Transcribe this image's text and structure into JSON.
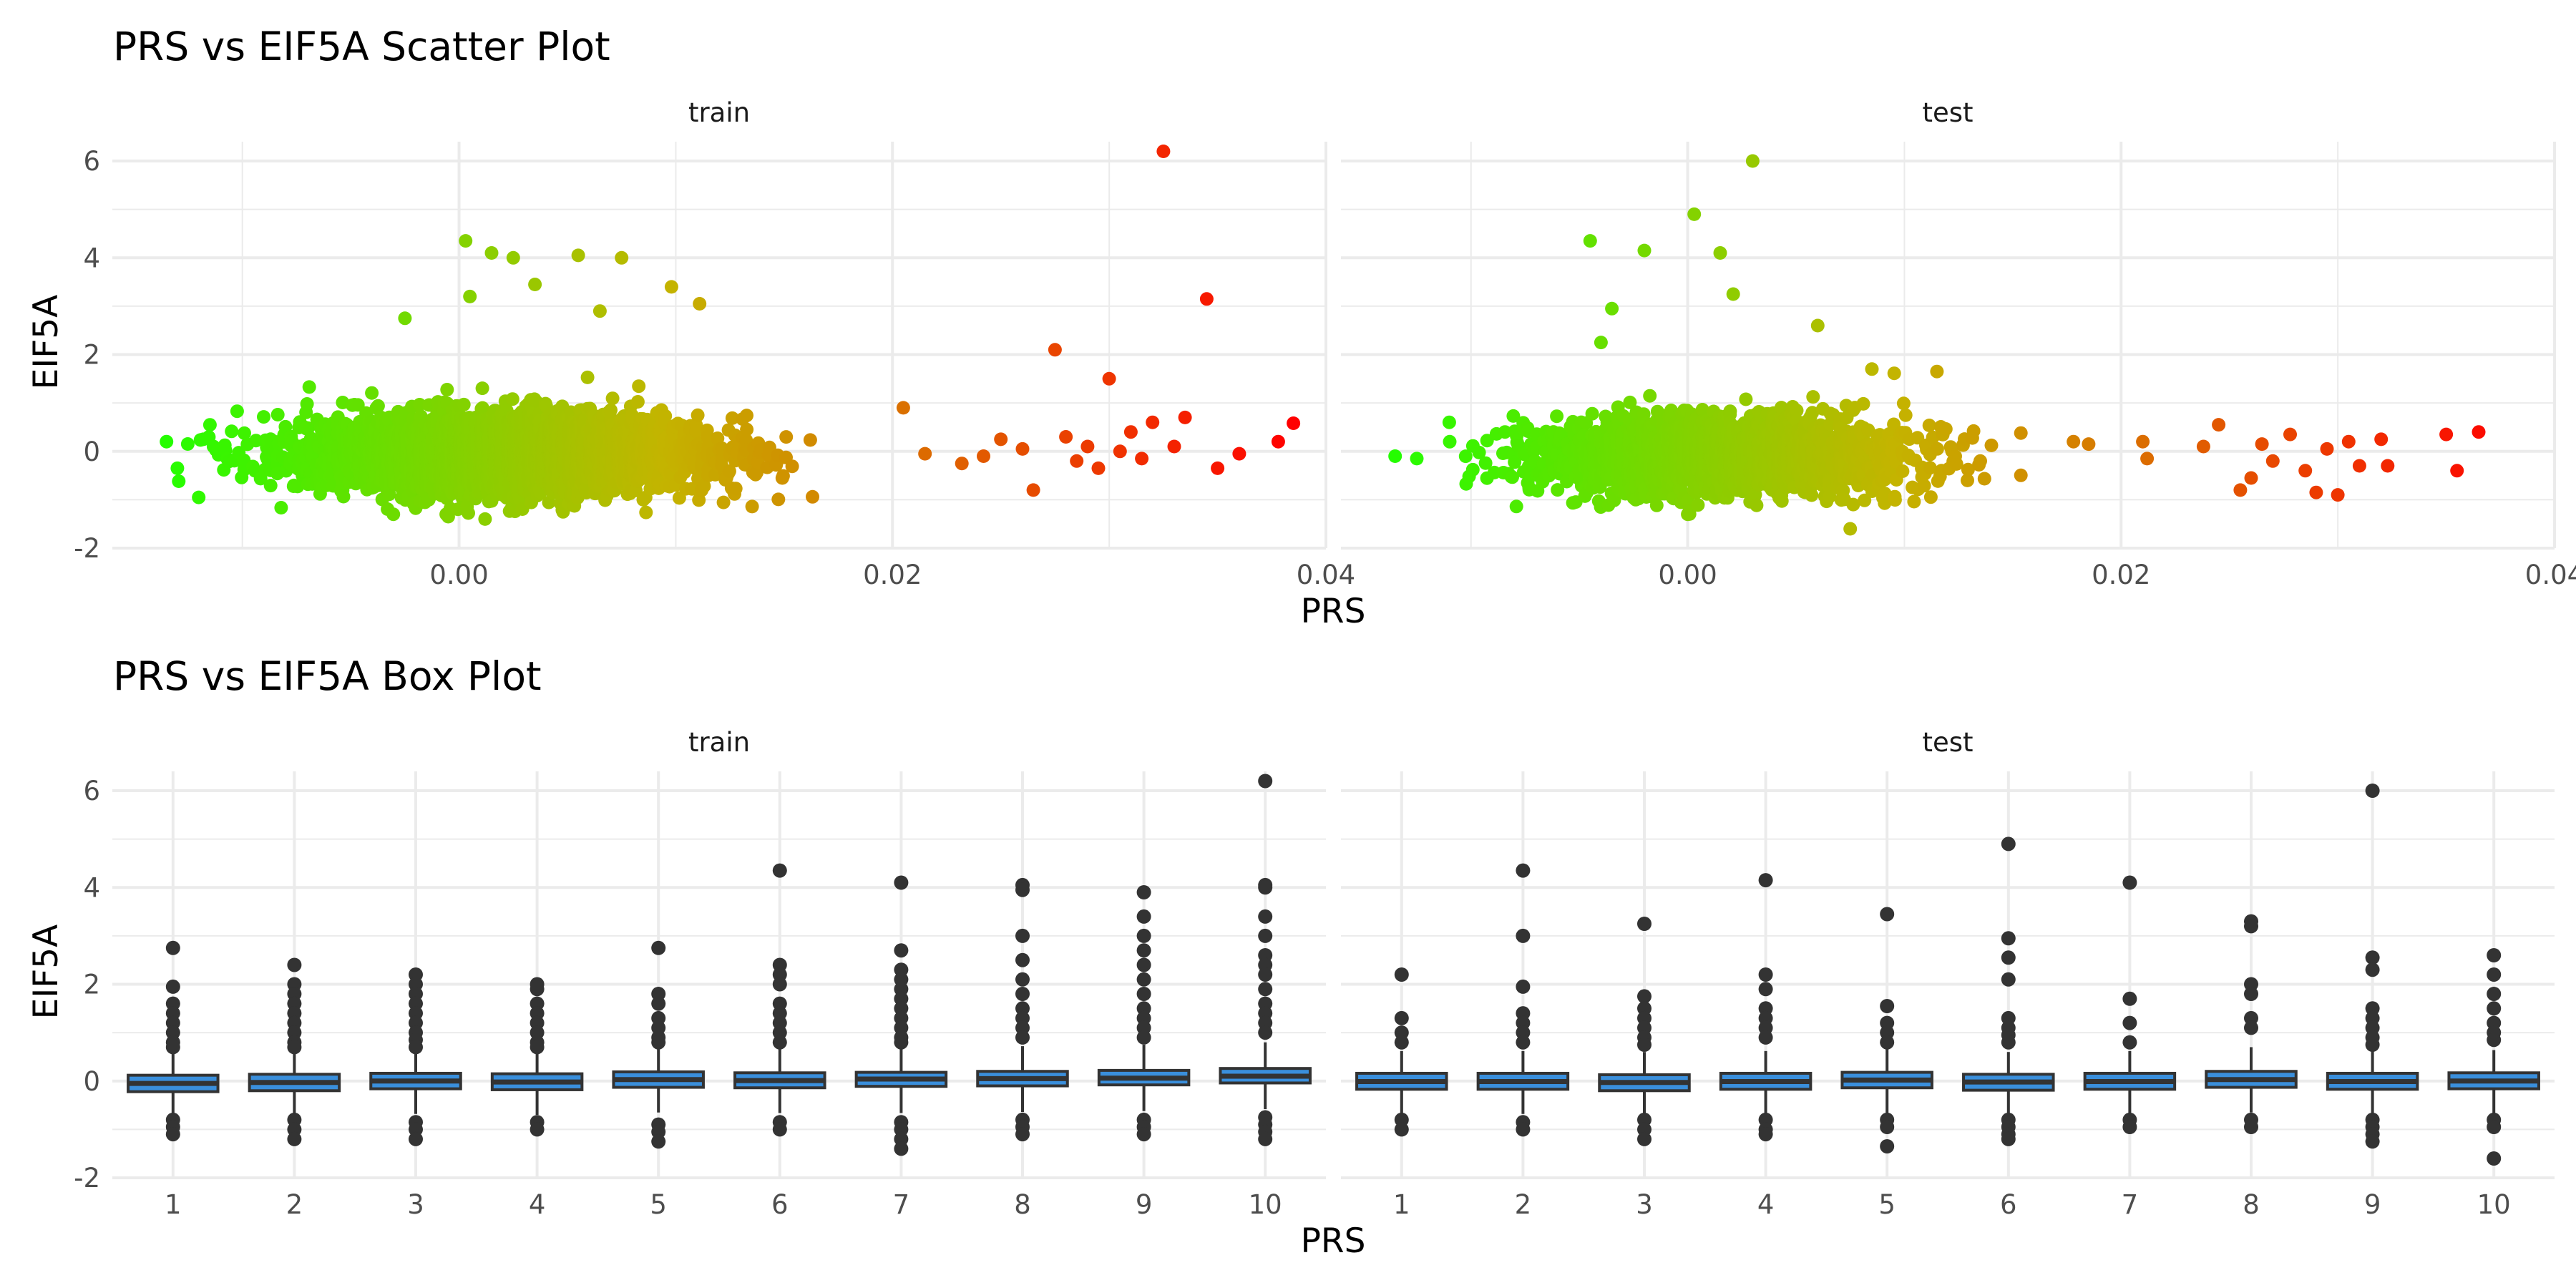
{
  "figure": {
    "scatter_title": "PRS vs EIF5A Scatter Plot",
    "box_title": "PRS vs EIF5A Box Plot",
    "scatter_xlabel": "PRS",
    "scatter_ylabel": "EIF5A",
    "box_xlabel": "PRS",
    "box_ylabel": "EIF5A",
    "panels": [
      "train",
      "test"
    ]
  },
  "colors": {
    "gradient_low": "#22ff00",
    "gradient_mid": "#c4b400",
    "gradient_high": "#ff0000",
    "box_fill": "#3a8fdc",
    "box_line": "#333333",
    "outlier": "#333333"
  },
  "chart_data": [
    {
      "type": "scatter",
      "title": "PRS vs EIF5A Scatter Plot",
      "xlabel": "PRS",
      "ylabel": "EIF5A",
      "xlim": [
        -0.016,
        0.04
      ],
      "ylim": [
        -2,
        6.4
      ],
      "x_ticks": [
        0.0,
        0.02,
        0.04
      ],
      "x_tick_labels": [
        "0.00",
        "0.02",
        "0.04"
      ],
      "y_ticks": [
        -2,
        0,
        2,
        4,
        6
      ],
      "y_tick_labels": [
        "-2",
        "0",
        "2",
        "4",
        "6"
      ],
      "grid": true,
      "color_by": "PRS",
      "panels": [
        {
          "name": "train",
          "bulk": {
            "x_min": -0.013,
            "x_max": 0.019,
            "x_center": 0.002,
            "x_spread": 0.0045,
            "y_center": -0.05,
            "y_spread": 0.35,
            "count": 4000
          },
          "points": [
            {
              "x": -0.0135,
              "y": 0.2
            },
            {
              "x": -0.013,
              "y": -0.35
            },
            {
              "x": -0.0118,
              "y": 0.25
            },
            {
              "x": -0.0025,
              "y": 2.75
            },
            {
              "x": 0.0003,
              "y": 4.35
            },
            {
              "x": 0.0015,
              "y": 4.1
            },
            {
              "x": 0.0025,
              "y": 4.0
            },
            {
              "x": 0.0055,
              "y": 4.05
            },
            {
              "x": 0.0075,
              "y": 4.0
            },
            {
              "x": 0.0098,
              "y": 3.4
            },
            {
              "x": 0.0111,
              "y": 3.05
            },
            {
              "x": 0.0005,
              "y": 3.2
            },
            {
              "x": 0.0035,
              "y": 3.45
            },
            {
              "x": 0.0065,
              "y": 2.9
            },
            {
              "x": -0.0005,
              "y": -1.35
            },
            {
              "x": 0.0012,
              "y": -1.4
            },
            {
              "x": 0.0048,
              "y": -1.25
            },
            {
              "x": 0.0085,
              "y": -1.0
            },
            {
              "x": 0.0205,
              "y": 0.9
            },
            {
              "x": 0.0215,
              "y": -0.05
            },
            {
              "x": 0.0232,
              "y": -0.25
            },
            {
              "x": 0.0242,
              "y": -0.1
            },
            {
              "x": 0.025,
              "y": 0.25
            },
            {
              "x": 0.026,
              "y": 0.05
            },
            {
              "x": 0.0265,
              "y": -0.8
            },
            {
              "x": 0.0275,
              "y": 2.1
            },
            {
              "x": 0.028,
              "y": 0.3
            },
            {
              "x": 0.0285,
              "y": -0.2
            },
            {
              "x": 0.029,
              "y": 0.1
            },
            {
              "x": 0.0295,
              "y": -0.35
            },
            {
              "x": 0.03,
              "y": 1.5
            },
            {
              "x": 0.0305,
              "y": 0.0
            },
            {
              "x": 0.031,
              "y": 0.4
            },
            {
              "x": 0.0315,
              "y": -0.15
            },
            {
              "x": 0.032,
              "y": 0.6
            },
            {
              "x": 0.0325,
              "y": 6.2
            },
            {
              "x": 0.033,
              "y": 0.1
            },
            {
              "x": 0.0335,
              "y": 0.7
            },
            {
              "x": 0.0345,
              "y": 3.15
            },
            {
              "x": 0.035,
              "y": -0.35
            },
            {
              "x": 0.036,
              "y": -0.05
            },
            {
              "x": 0.0378,
              "y": 0.2
            },
            {
              "x": 0.0385,
              "y": 0.58
            }
          ]
        },
        {
          "name": "test",
          "bulk": {
            "x_min": -0.013,
            "x_max": 0.016,
            "x_center": 0.0015,
            "x_spread": 0.0042,
            "y_center": -0.1,
            "y_spread": 0.35,
            "count": 2000
          },
          "points": [
            {
              "x": -0.0135,
              "y": -0.1
            },
            {
              "x": -0.0125,
              "y": -0.15
            },
            {
              "x": -0.011,
              "y": 0.6
            },
            {
              "x": -0.0045,
              "y": 4.35
            },
            {
              "x": -0.0035,
              "y": 2.95
            },
            {
              "x": -0.002,
              "y": 4.15
            },
            {
              "x": 0.0003,
              "y": 4.9
            },
            {
              "x": 0.0015,
              "y": 4.1
            },
            {
              "x": 0.003,
              "y": 6.0
            },
            {
              "x": -0.004,
              "y": 2.25
            },
            {
              "x": 0.0021,
              "y": 3.25
            },
            {
              "x": 0.006,
              "y": 2.6
            },
            {
              "x": 0.0085,
              "y": 1.7
            },
            {
              "x": 0.0115,
              "y": 1.65
            },
            {
              "x": 0.0075,
              "y": -1.6
            },
            {
              "x": 0.0,
              "y": -1.3
            },
            {
              "x": 0.0178,
              "y": 0.2
            },
            {
              "x": 0.0185,
              "y": 0.15
            },
            {
              "x": 0.021,
              "y": 0.2
            },
            {
              "x": 0.0212,
              "y": -0.15
            },
            {
              "x": 0.0238,
              "y": 0.1
            },
            {
              "x": 0.0245,
              "y": 0.55
            },
            {
              "x": 0.0255,
              "y": -0.8
            },
            {
              "x": 0.026,
              "y": -0.55
            },
            {
              "x": 0.0265,
              "y": 0.15
            },
            {
              "x": 0.027,
              "y": -0.2
            },
            {
              "x": 0.0278,
              "y": 0.35
            },
            {
              "x": 0.0285,
              "y": -0.4
            },
            {
              "x": 0.029,
              "y": -0.85
            },
            {
              "x": 0.0295,
              "y": 0.05
            },
            {
              "x": 0.03,
              "y": -0.9
            },
            {
              "x": 0.0305,
              "y": 0.2
            },
            {
              "x": 0.031,
              "y": -0.3
            },
            {
              "x": 0.032,
              "y": 0.25
            },
            {
              "x": 0.0323,
              "y": -0.3
            },
            {
              "x": 0.035,
              "y": 0.35
            },
            {
              "x": 0.0355,
              "y": -0.4
            },
            {
              "x": 0.0365,
              "y": 0.4
            }
          ]
        }
      ]
    },
    {
      "type": "box",
      "title": "PRS vs EIF5A Box Plot",
      "xlabel": "PRS",
      "ylabel": "EIF5A",
      "categories": [
        "1",
        "2",
        "3",
        "4",
        "5",
        "6",
        "7",
        "8",
        "9",
        "10"
      ],
      "ylim": [
        -2,
        6.4
      ],
      "y_ticks": [
        -2,
        0,
        2,
        4,
        6
      ],
      "y_tick_labels": [
        "-2",
        "0",
        "2",
        "4",
        "6"
      ],
      "grid": true,
      "panels": [
        {
          "name": "train",
          "boxes": [
            {
              "q1": -0.22,
              "median": -0.05,
              "q3": 0.12,
              "whisker_low": -0.72,
              "whisker_high": 0.6,
              "outliers": [
                2.75,
                1.95,
                1.6,
                1.4,
                1.2,
                1.0,
                0.8,
                0.7,
                -0.8,
                -0.95,
                -1.1
              ]
            },
            {
              "q1": -0.2,
              "median": -0.03,
              "q3": 0.14,
              "whisker_low": -0.72,
              "whisker_high": 0.62,
              "outliers": [
                2.4,
                2.0,
                1.8,
                1.6,
                1.4,
                1.2,
                1.0,
                0.8,
                0.7,
                -0.8,
                -1.0,
                -1.2
              ]
            },
            {
              "q1": -0.16,
              "median": 0.0,
              "q3": 0.16,
              "whisker_low": -0.68,
              "whisker_high": 0.64,
              "outliers": [
                2.2,
                2.0,
                1.8,
                1.6,
                1.4,
                1.2,
                1.0,
                0.85,
                0.7,
                -0.85,
                -1.0,
                -1.2
              ]
            },
            {
              "q1": -0.18,
              "median": -0.02,
              "q3": 0.15,
              "whisker_low": -0.7,
              "whisker_high": 0.63,
              "outliers": [
                2.0,
                1.9,
                1.6,
                1.4,
                1.2,
                1.0,
                0.8,
                0.7,
                -0.85,
                -1.0
              ]
            },
            {
              "q1": -0.13,
              "median": 0.03,
              "q3": 0.19,
              "whisker_low": -0.65,
              "whisker_high": 0.7,
              "outliers": [
                2.75,
                1.8,
                1.6,
                1.3,
                1.1,
                0.9,
                0.8,
                -0.9,
                -1.05,
                -1.25
              ]
            },
            {
              "q1": -0.14,
              "median": 0.01,
              "q3": 0.17,
              "whisker_low": -0.66,
              "whisker_high": 0.68,
              "outliers": [
                4.35,
                2.4,
                2.2,
                2.0,
                1.6,
                1.4,
                1.2,
                1.0,
                0.8,
                -0.85,
                -1.0
              ]
            },
            {
              "q1": -0.11,
              "median": 0.04,
              "q3": 0.18,
              "whisker_low": -0.66,
              "whisker_high": 0.7,
              "outliers": [
                4.1,
                2.7,
                2.3,
                2.1,
                1.9,
                1.7,
                1.5,
                1.3,
                1.1,
                0.9,
                0.8,
                -0.85,
                -1.0,
                -1.2,
                -1.4
              ]
            },
            {
              "q1": -0.1,
              "median": 0.05,
              "q3": 0.2,
              "whisker_low": -0.64,
              "whisker_high": 0.72,
              "outliers": [
                4.05,
                3.95,
                3.0,
                2.5,
                2.1,
                1.8,
                1.5,
                1.3,
                1.1,
                0.9,
                -0.8,
                -0.95,
                -1.1
              ]
            },
            {
              "q1": -0.08,
              "median": 0.06,
              "q3": 0.22,
              "whisker_low": -0.62,
              "whisker_high": 0.75,
              "outliers": [
                3.9,
                3.4,
                3.0,
                2.7,
                2.4,
                2.1,
                1.8,
                1.5,
                1.3,
                1.1,
                0.9,
                -0.8,
                -0.95,
                -1.1
              ]
            },
            {
              "q1": -0.04,
              "median": 0.1,
              "q3": 0.26,
              "whisker_low": -0.58,
              "whisker_high": 0.8,
              "outliers": [
                6.2,
                4.05,
                4.0,
                3.4,
                3.0,
                2.6,
                2.4,
                2.2,
                1.9,
                1.6,
                1.4,
                1.2,
                1.0,
                -0.75,
                -0.9,
                -1.05,
                -1.2
              ]
            }
          ]
        },
        {
          "name": "test",
          "boxes": [
            {
              "q1": -0.17,
              "median": -0.01,
              "q3": 0.16,
              "whisker_low": -0.68,
              "whisker_high": 0.62,
              "outliers": [
                2.2,
                1.3,
                1.0,
                0.8,
                -0.8,
                -1.0
              ]
            },
            {
              "q1": -0.17,
              "median": -0.01,
              "q3": 0.16,
              "whisker_low": -0.68,
              "whisker_high": 0.62,
              "outliers": [
                4.35,
                3.0,
                1.95,
                1.4,
                1.2,
                1.0,
                0.8,
                -0.85,
                -1.0
              ]
            },
            {
              "q1": -0.2,
              "median": -0.03,
              "q3": 0.13,
              "whisker_low": -0.7,
              "whisker_high": 0.6,
              "outliers": [
                3.25,
                1.75,
                1.5,
                1.3,
                1.1,
                0.9,
                0.75,
                -0.8,
                -1.0,
                -1.2
              ]
            },
            {
              "q1": -0.17,
              "median": -0.01,
              "q3": 0.16,
              "whisker_low": -0.68,
              "whisker_high": 0.62,
              "outliers": [
                4.15,
                2.2,
                1.9,
                1.5,
                1.3,
                1.1,
                0.9,
                -0.8,
                -1.0,
                -1.1
              ]
            },
            {
              "q1": -0.14,
              "median": 0.02,
              "q3": 0.18,
              "whisker_low": -0.66,
              "whisker_high": 0.66,
              "outliers": [
                3.45,
                1.55,
                1.2,
                1.0,
                0.8,
                -0.8,
                -0.95,
                -1.35
              ]
            },
            {
              "q1": -0.19,
              "median": -0.02,
              "q3": 0.14,
              "whisker_low": -0.7,
              "whisker_high": 0.6,
              "outliers": [
                4.9,
                2.95,
                2.55,
                2.1,
                1.3,
                1.1,
                0.95,
                0.8,
                -0.8,
                -0.95,
                -1.1,
                -1.2
              ]
            },
            {
              "q1": -0.17,
              "median": -0.01,
              "q3": 0.16,
              "whisker_low": -0.68,
              "whisker_high": 0.62,
              "outliers": [
                4.1,
                1.7,
                1.2,
                0.8,
                -0.8,
                -0.95
              ]
            },
            {
              "q1": -0.13,
              "median": 0.03,
              "q3": 0.2,
              "whisker_low": -0.65,
              "whisker_high": 0.7,
              "outliers": [
                3.3,
                3.2,
                2.0,
                1.8,
                1.3,
                1.1,
                -0.8,
                -0.95
              ]
            },
            {
              "q1": -0.17,
              "median": -0.01,
              "q3": 0.16,
              "whisker_low": -0.68,
              "whisker_high": 0.62,
              "outliers": [
                6.0,
                2.55,
                2.3,
                1.5,
                1.3,
                1.1,
                0.9,
                0.75,
                -0.8,
                -0.95,
                -1.1,
                -1.25
              ]
            },
            {
              "q1": -0.16,
              "median": 0.0,
              "q3": 0.17,
              "whisker_low": -0.67,
              "whisker_high": 0.64,
              "outliers": [
                2.6,
                2.2,
                1.8,
                1.5,
                1.2,
                1.0,
                0.85,
                -0.8,
                -0.95,
                -1.6
              ]
            }
          ]
        }
      ]
    }
  ]
}
